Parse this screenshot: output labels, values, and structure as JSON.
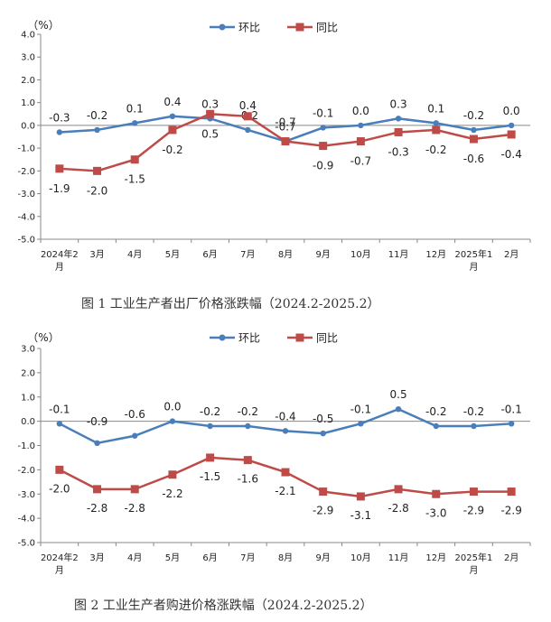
{
  "chart_data": [
    {
      "type": "line",
      "title": "",
      "caption": "图 1  工业生产者出厂价格涨跌幅（2024.2-2025.2）",
      "unit_label": "（%）",
      "categories": [
        [
          "2024年2",
          "月"
        ],
        [
          "3月"
        ],
        [
          "4月"
        ],
        [
          "5月"
        ],
        [
          "6月"
        ],
        [
          "7月"
        ],
        [
          "8月"
        ],
        [
          "9月"
        ],
        [
          "10月"
        ],
        [
          "11月"
        ],
        [
          "12月"
        ],
        [
          "2025年1",
          "月"
        ],
        [
          "2月"
        ]
      ],
      "ylim": [
        -5.0,
        4.0
      ],
      "yticks": [
        "4.0",
        "3.0",
        "2.0",
        "1.0",
        "0.0",
        "-1.0",
        "-2.0",
        "-3.0",
        "-4.0",
        "-5.0"
      ],
      "legend_position": "top-center",
      "series": [
        {
          "name": "环比",
          "color": "#4a7ebb",
          "marker": "circle",
          "values": [
            -0.3,
            -0.2,
            0.1,
            0.4,
            0.3,
            -0.2,
            -0.7,
            -0.1,
            0.0,
            0.3,
            0.1,
            -0.2,
            0.0
          ],
          "labels": [
            "-0.3",
            "-0.2",
            "0.1",
            "0.4",
            "0.3",
            "-0.2",
            "-0.7",
            "-0.1",
            "0.0",
            "0.3",
            "0.1",
            "-0.2",
            "0.0"
          ]
        },
        {
          "name": "同比",
          "color": "#be4b48",
          "marker": "square",
          "values": [
            -1.9,
            -2.0,
            -1.5,
            -0.2,
            0.5,
            0.4,
            -0.7,
            -0.9,
            -0.7,
            -0.3,
            -0.2,
            -0.6,
            -0.4
          ],
          "labels": [
            "-1.9",
            "-2.0",
            "-1.5",
            "-0.2",
            "0.5",
            "0.4",
            "-0.7",
            "-0.9",
            "-0.7",
            "-0.3",
            "-0.2",
            "-0.6",
            "-0.4"
          ]
        }
      ]
    },
    {
      "type": "line",
      "title": "",
      "caption": "图 2   工业生产者购进价格涨跌幅（2024.2-2025.2）",
      "unit_label": "（%）",
      "categories": [
        [
          "2024年2",
          "月"
        ],
        [
          "3月"
        ],
        [
          "4月"
        ],
        [
          "5月"
        ],
        [
          "6月"
        ],
        [
          "7月"
        ],
        [
          "8月"
        ],
        [
          "9月"
        ],
        [
          "10月"
        ],
        [
          "11月"
        ],
        [
          "12月"
        ],
        [
          "2025年1",
          "月"
        ],
        [
          "2月"
        ]
      ],
      "ylim": [
        -5.0,
        3.0
      ],
      "yticks": [
        "3.0",
        "2.0",
        "1.0",
        "0.0",
        "-1.0",
        "-2.0",
        "-3.0",
        "-4.0",
        "-5.0"
      ],
      "legend_position": "top-center",
      "series": [
        {
          "name": "环比",
          "color": "#4a7ebb",
          "marker": "circle",
          "values": [
            -0.1,
            -0.9,
            -0.6,
            0.0,
            -0.2,
            -0.2,
            -0.4,
            -0.5,
            -0.1,
            0.5,
            -0.2,
            -0.2,
            -0.1
          ],
          "labels": [
            "-0.1",
            "-0.9",
            "-0.6",
            "0.0",
            "-0.2",
            "-0.2",
            "-0.4",
            "-0.5",
            "-0.1",
            "0.5",
            "-0.2",
            "-0.2",
            "-0.1"
          ]
        },
        {
          "name": "同比",
          "color": "#be4b48",
          "marker": "square",
          "values": [
            -2.0,
            -2.8,
            -2.8,
            -2.2,
            -1.5,
            -1.6,
            -2.1,
            -2.9,
            -3.1,
            -2.8,
            -3.0,
            -2.9,
            -2.9
          ],
          "labels": [
            "-2.0",
            "-2.8",
            "-2.8",
            "-2.2",
            "-1.5",
            "-1.6",
            "-2.1",
            "-2.9",
            "-3.1",
            "-2.8",
            "-3.0",
            "-2.9",
            "-2.9"
          ]
        }
      ]
    }
  ]
}
